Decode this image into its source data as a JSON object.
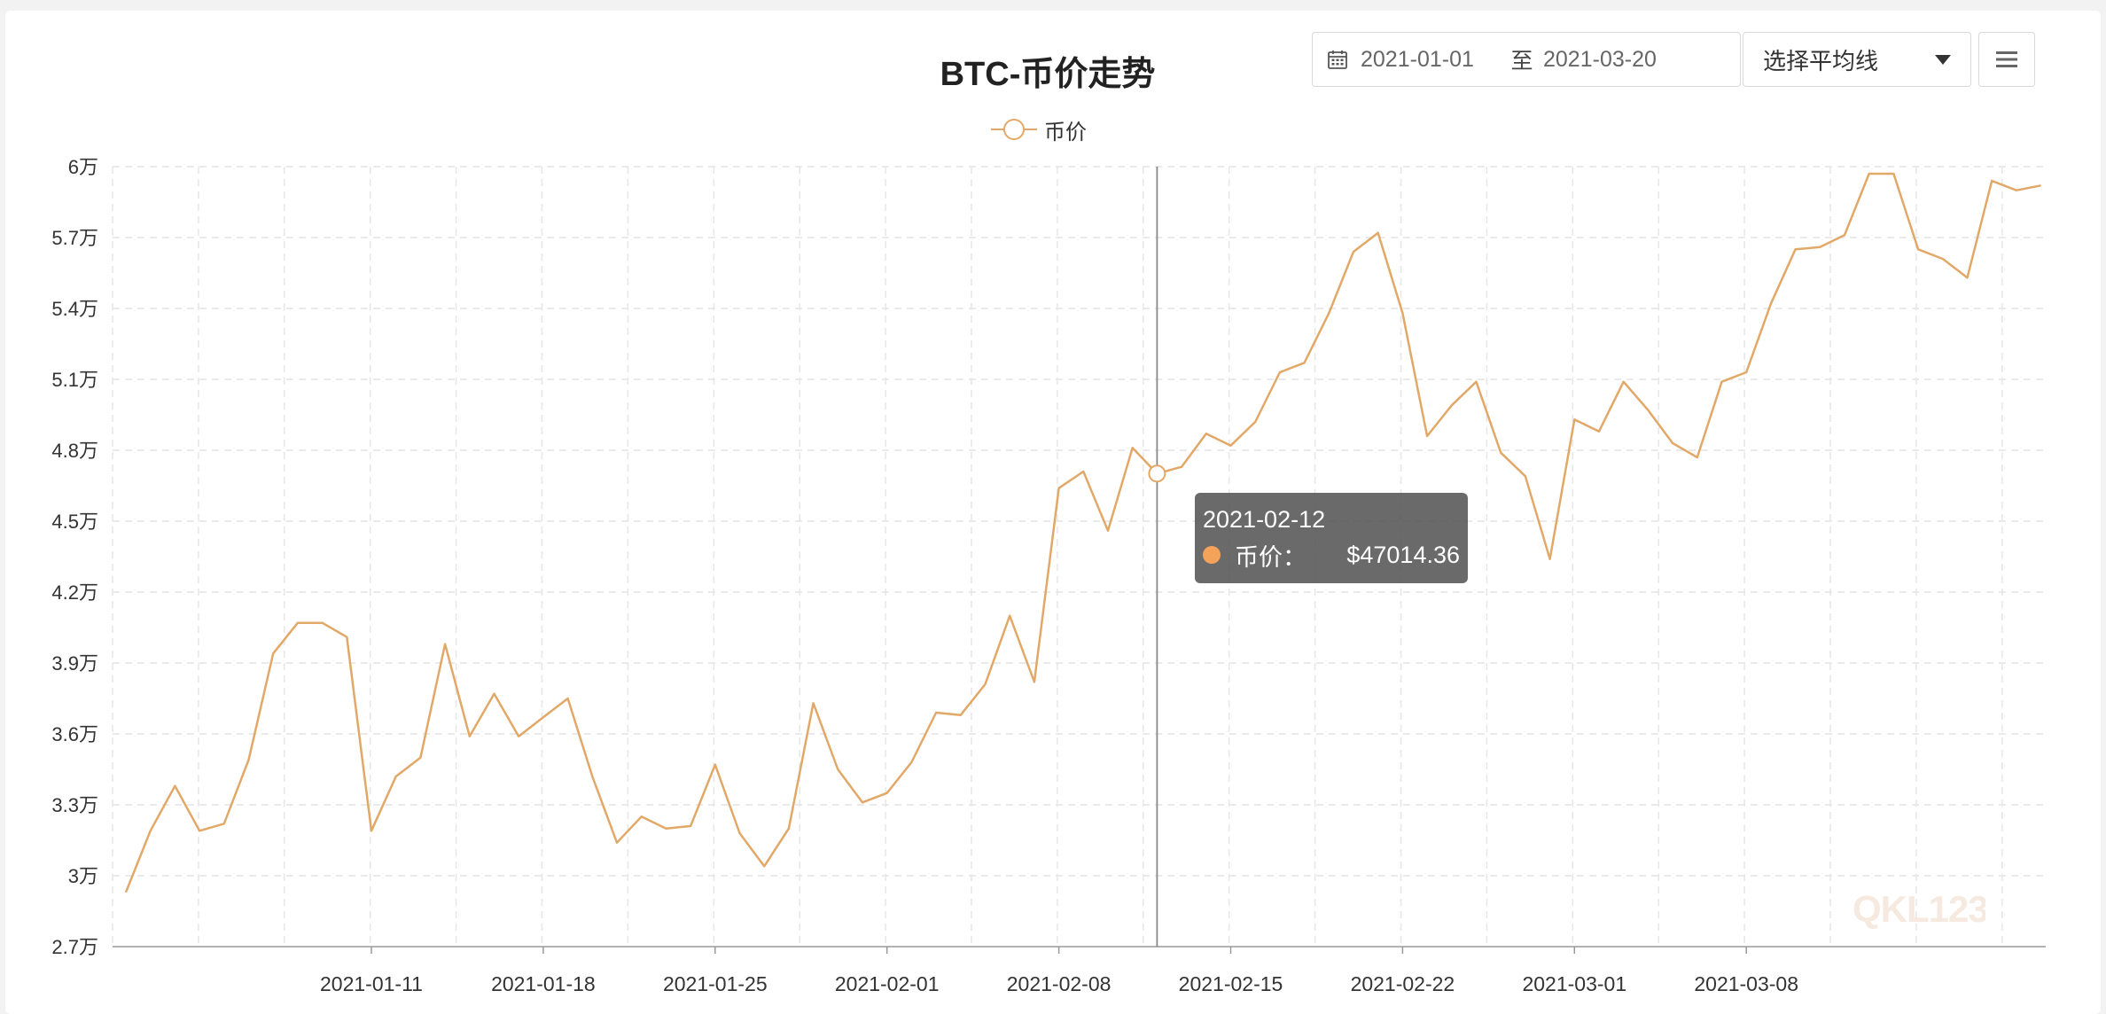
{
  "header": {
    "title": "BTC-币价走势",
    "date_start": "2021-01-01",
    "date_separator": "至",
    "date_end": "2021-03-20",
    "ma_select_label": "选择平均线"
  },
  "icons": {
    "calendar": "calendar-icon",
    "dropdown": "caret-down-icon",
    "menu": "hamburger-menu-icon"
  },
  "tooltip": {
    "date": "2021-02-12",
    "series_name": "币价：",
    "value": "$47014.36"
  },
  "watermark": "QKL123",
  "colors": {
    "series": "#e2a868",
    "tooltip_dot": "#f5a35b",
    "tooltip_bg": "#505050"
  },
  "chart_data": {
    "type": "line",
    "title": "BTC-币价走势",
    "legend": "top-center",
    "grid": true,
    "ylim": [
      27000,
      60000
    ],
    "yticks": [
      {
        "value": 27000,
        "label": "2.7万"
      },
      {
        "value": 30000,
        "label": "3万"
      },
      {
        "value": 33000,
        "label": "3.3万"
      },
      {
        "value": 36000,
        "label": "3.6万"
      },
      {
        "value": 39000,
        "label": "3.9万"
      },
      {
        "value": 42000,
        "label": "4.2万"
      },
      {
        "value": 45000,
        "label": "4.5万"
      },
      {
        "value": 48000,
        "label": "4.8万"
      },
      {
        "value": 51000,
        "label": "5.1万"
      },
      {
        "value": 54000,
        "label": "5.4万"
      },
      {
        "value": 57000,
        "label": "5.7万"
      },
      {
        "value": 60000,
        "label": "6万"
      }
    ],
    "xticks": [
      "2021-01-11",
      "2021-01-18",
      "2021-01-25",
      "2021-02-01",
      "2021-02-08",
      "2021-02-15",
      "2021-02-22",
      "2021-03-01",
      "2021-03-08"
    ],
    "series": [
      {
        "name": "币价",
        "x": [
          "2021-01-01",
          "2021-01-02",
          "2021-01-03",
          "2021-01-04",
          "2021-01-05",
          "2021-01-06",
          "2021-01-07",
          "2021-01-08",
          "2021-01-09",
          "2021-01-10",
          "2021-01-11",
          "2021-01-12",
          "2021-01-13",
          "2021-01-14",
          "2021-01-15",
          "2021-01-16",
          "2021-01-17",
          "2021-01-18",
          "2021-01-19",
          "2021-01-20",
          "2021-01-21",
          "2021-01-22",
          "2021-01-23",
          "2021-01-24",
          "2021-01-25",
          "2021-01-26",
          "2021-01-27",
          "2021-01-28",
          "2021-01-29",
          "2021-01-30",
          "2021-01-31",
          "2021-02-01",
          "2021-02-02",
          "2021-02-03",
          "2021-02-04",
          "2021-02-05",
          "2021-02-06",
          "2021-02-07",
          "2021-02-08",
          "2021-02-09",
          "2021-02-10",
          "2021-02-11",
          "2021-02-12",
          "2021-02-13",
          "2021-02-14",
          "2021-02-15",
          "2021-02-16",
          "2021-02-17",
          "2021-02-18",
          "2021-02-19",
          "2021-02-20",
          "2021-02-21",
          "2021-02-22",
          "2021-02-23",
          "2021-02-24",
          "2021-02-25",
          "2021-02-26",
          "2021-02-27",
          "2021-02-28",
          "2021-03-01",
          "2021-03-02",
          "2021-03-03",
          "2021-03-04",
          "2021-03-05",
          "2021-03-06",
          "2021-03-07",
          "2021-03-08",
          "2021-03-09",
          "2021-03-10",
          "2021-03-11",
          "2021-03-12",
          "2021-03-13",
          "2021-03-14",
          "2021-03-15",
          "2021-03-16",
          "2021-03-17",
          "2021-03-18",
          "2021-03-19",
          "2021-03-20"
        ],
        "values": [
          29300,
          31900,
          33800,
          31900,
          32200,
          34900,
          39400,
          40700,
          40700,
          40100,
          31900,
          34200,
          35000,
          39800,
          35900,
          37700,
          35900,
          36700,
          37500,
          34200,
          31400,
          32500,
          32000,
          32100,
          34700,
          31800,
          30400,
          32000,
          37300,
          34500,
          33100,
          33500,
          34800,
          36900,
          36800,
          38100,
          41000,
          38200,
          46400,
          47100,
          44600,
          48100,
          47014,
          47300,
          48700,
          48200,
          49200,
          51300,
          51700,
          53800,
          56400,
          57200,
          53800,
          48600,
          49900,
          50900,
          47900,
          46900,
          43400,
          49300,
          48800,
          50900,
          49700,
          48300,
          47700,
          50900,
          51300,
          54200,
          56500,
          56600,
          57100,
          59700,
          59700,
          56500,
          56100,
          55300,
          59400,
          59000,
          59200
        ]
      }
    ]
  }
}
